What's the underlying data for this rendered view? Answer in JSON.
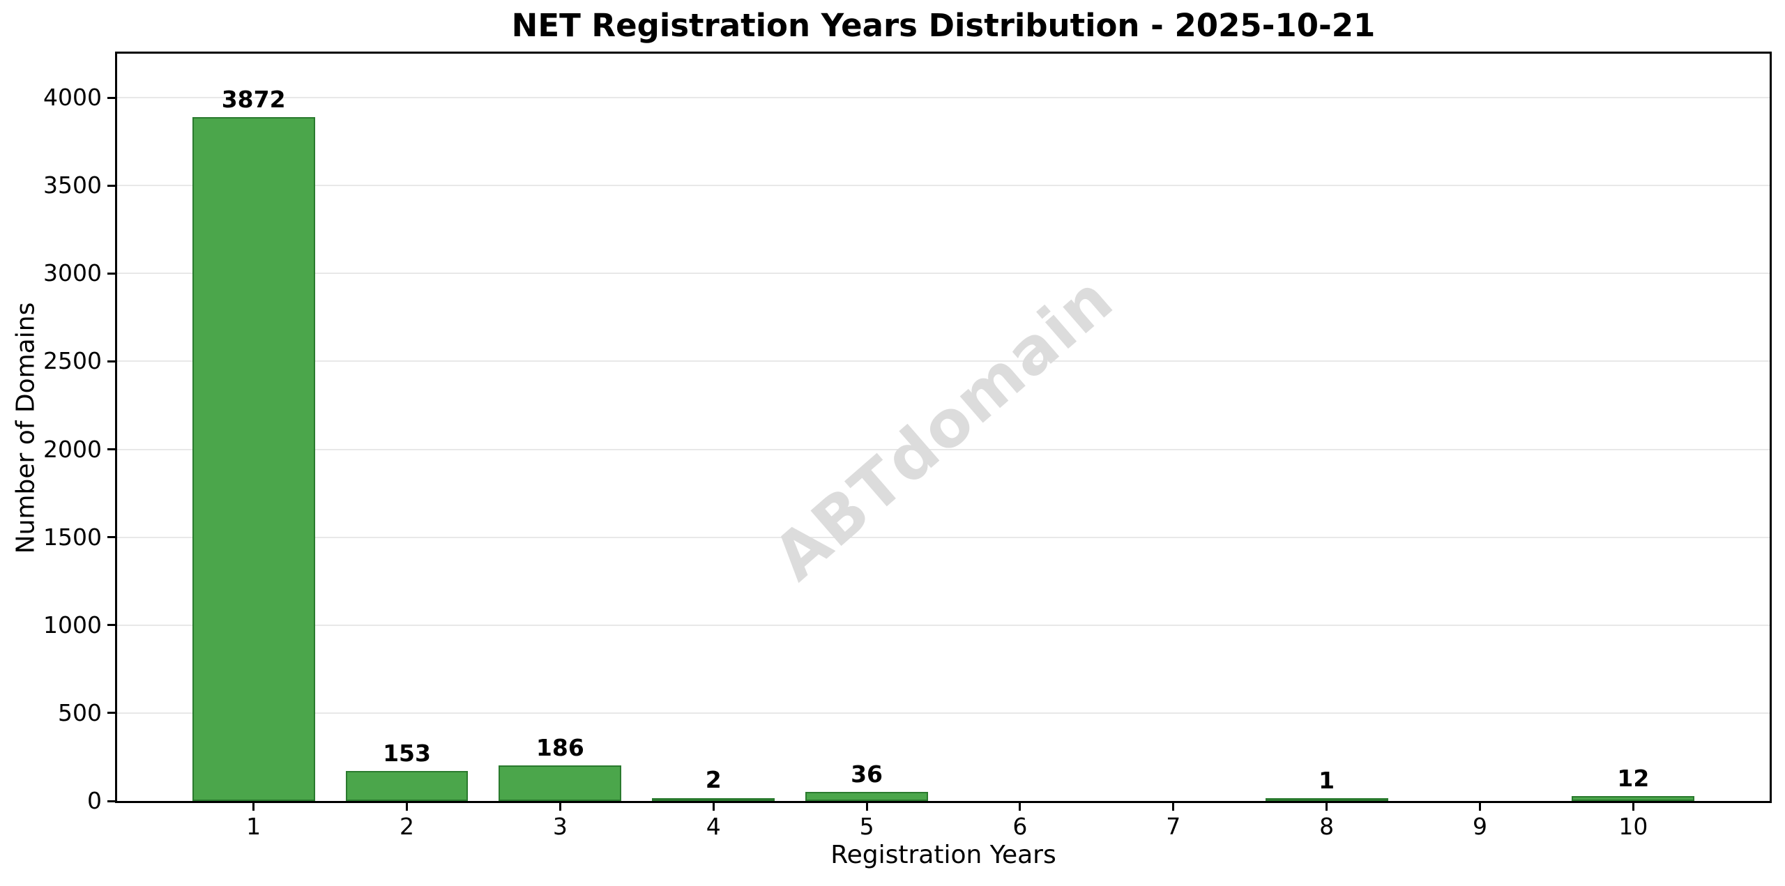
{
  "chart_data": {
    "type": "bar",
    "title": "NET Registration Years Distribution - 2025-10-21",
    "xlabel": "Registration Years",
    "ylabel": "Number of Domains",
    "categories": [
      "1",
      "2",
      "3",
      "4",
      "5",
      "6",
      "7",
      "8",
      "9",
      "10"
    ],
    "values": [
      3872,
      153,
      186,
      2,
      36,
      0,
      0,
      1,
      0,
      12
    ],
    "bar_labels": [
      "3872",
      "153",
      "186",
      "2",
      "36",
      "",
      "",
      "1",
      "",
      "12"
    ],
    "xlim": [
      0.11,
      10.89
    ],
    "ylim": [
      0,
      4250
    ],
    "yticks": [
      0,
      500,
      1000,
      1500,
      2000,
      2500,
      3000,
      3500,
      4000
    ],
    "bar_width_units": 0.8,
    "grid": "horizontal",
    "legend": "none",
    "watermark": "ABTdomain",
    "colors": {
      "bar_fill": "#4ba64b",
      "bar_edge": "#2a7a2e",
      "grid": "#e8e8e8",
      "spine": "#000000",
      "watermark": "#dcdcdc",
      "text": "#000000",
      "background": "#ffffff"
    }
  }
}
